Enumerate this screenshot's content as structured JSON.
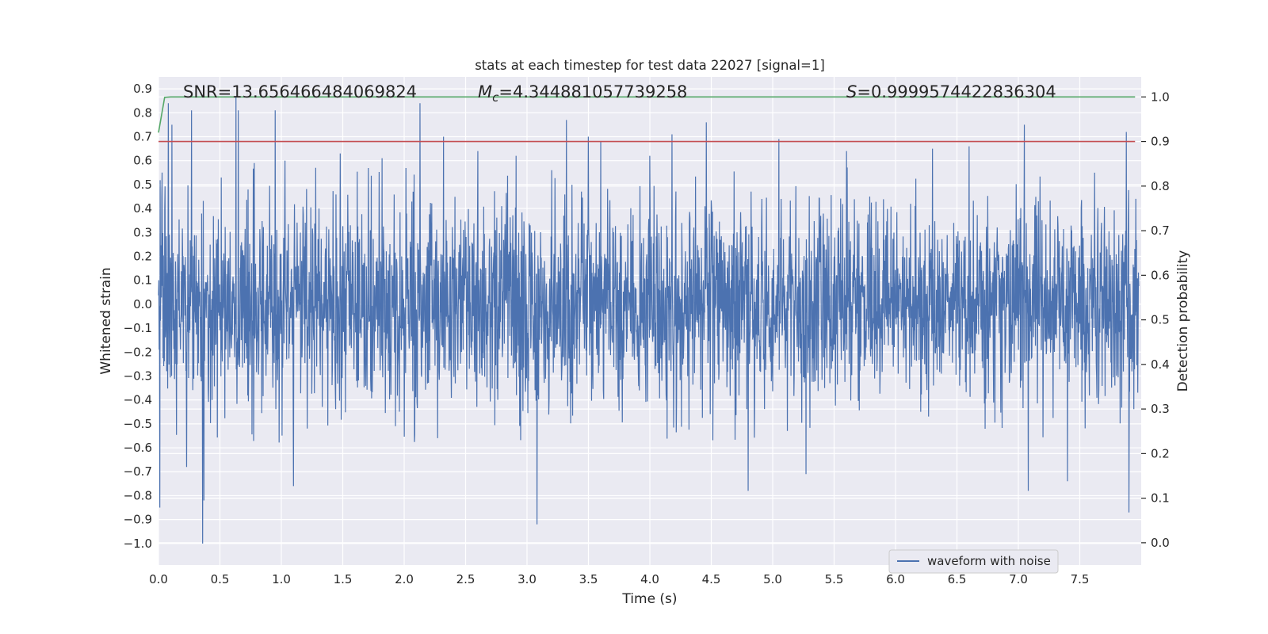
{
  "chart_data": {
    "type": "line",
    "title": "stats at each timestep for test data 22027 [signal=1]",
    "xlabel": "Time (s)",
    "ylabel": "Whitened strain",
    "ylabel_right": "Detection probability",
    "xlim": [
      0.0,
      8.0
    ],
    "ylim": [
      -1.09,
      0.95
    ],
    "ylim_right": [
      -0.05,
      1.045
    ],
    "x_ticks": [
      0.0,
      0.5,
      1.0,
      1.5,
      2.0,
      2.5,
      3.0,
      3.5,
      4.0,
      4.5,
      5.0,
      5.5,
      6.0,
      6.5,
      7.0,
      7.5
    ],
    "x_tick_labels": [
      "0.0",
      "0.5",
      "1.0",
      "1.5",
      "2.0",
      "2.5",
      "3.0",
      "3.5",
      "4.0",
      "4.5",
      "5.0",
      "5.5",
      "6.0",
      "6.5",
      "7.0",
      "7.5"
    ],
    "y_ticks": [
      0.9,
      0.8,
      0.7,
      0.6,
      0.5,
      0.4,
      0.3,
      0.2,
      0.1,
      0.0,
      -0.1,
      -0.2,
      -0.3,
      -0.4,
      -0.5,
      -0.6,
      -0.7,
      -0.8,
      -0.9,
      -1.0
    ],
    "y_tick_labels": [
      "0.9",
      "0.8",
      "0.7",
      "0.6",
      "0.5",
      "0.4",
      "0.3",
      "0.2",
      "0.1",
      "0.0",
      "−0.1",
      "−0.2",
      "−0.3",
      "−0.4",
      "−0.5",
      "−0.6",
      "−0.7",
      "−0.8",
      "−0.9",
      "−1.0"
    ],
    "y_ticks_right": [
      1.0,
      0.9,
      0.8,
      0.7,
      0.6,
      0.5,
      0.4,
      0.3,
      0.2,
      0.1,
      0.0
    ],
    "y_tick_labels_right": [
      "1.0",
      "0.9",
      "0.8",
      "0.7",
      "0.6",
      "0.5",
      "0.4",
      "0.3",
      "0.2",
      "0.1",
      "0.0"
    ],
    "annotations": {
      "snr": "SNR=13.656466484069824",
      "mc_symbol": "M",
      "mc_subscript": "c",
      "mc_value": "=4.344881057739258",
      "s_symbol": "S",
      "s_value": "=0.9999574422836304"
    },
    "legend": {
      "placement": "lower-right",
      "entries": [
        "waveform with noise"
      ]
    },
    "grid": true,
    "series": [
      {
        "name": "waveform with noise",
        "axis": "left",
        "color": "#4c72b0",
        "x_range": [
          0.0,
          7.98
        ],
        "envelope_typical": 0.42,
        "peaks": [
          [
            0.01,
            -0.85
          ],
          [
            0.03,
            0.55
          ],
          [
            0.08,
            0.84
          ],
          [
            0.11,
            0.75
          ],
          [
            0.23,
            -0.68
          ],
          [
            0.27,
            0.81
          ],
          [
            0.36,
            -1.0
          ],
          [
            0.37,
            -0.82
          ],
          [
            0.63,
            0.87
          ],
          [
            0.65,
            0.81
          ],
          [
            0.78,
            0.59
          ],
          [
            0.95,
            0.81
          ],
          [
            1.03,
            0.6
          ],
          [
            1.1,
            -0.76
          ],
          [
            1.28,
            0.57
          ],
          [
            1.48,
            0.63
          ],
          [
            1.82,
            0.61
          ],
          [
            2.13,
            0.84
          ],
          [
            2.32,
            0.7
          ],
          [
            2.6,
            0.64
          ],
          [
            2.91,
            0.62
          ],
          [
            3.08,
            -0.92
          ],
          [
            3.2,
            0.56
          ],
          [
            3.32,
            0.77
          ],
          [
            3.5,
            0.7
          ],
          [
            3.6,
            0.68
          ],
          [
            4.0,
            0.62
          ],
          [
            4.18,
            0.71
          ],
          [
            4.46,
            0.76
          ],
          [
            4.8,
            -0.78
          ],
          [
            5.05,
            0.69
          ],
          [
            5.27,
            -0.71
          ],
          [
            5.6,
            0.64
          ],
          [
            6.3,
            0.65
          ],
          [
            6.6,
            0.66
          ],
          [
            7.05,
            0.75
          ],
          [
            7.08,
            -0.78
          ],
          [
            7.4,
            -0.74
          ],
          [
            7.88,
            0.72
          ],
          [
            7.9,
            -0.87
          ]
        ]
      },
      {
        "name": "",
        "axis": "right",
        "color": "#55a868",
        "x": [
          0.0,
          0.05,
          0.1,
          1.0,
          2.0,
          3.0,
          4.0,
          5.0,
          6.0,
          7.0,
          7.95
        ],
        "y": [
          0.92,
          0.999,
          1.0,
          1.0,
          1.0,
          1.0,
          1.0,
          1.0,
          1.0,
          1.0,
          1.0
        ]
      },
      {
        "name": "",
        "axis": "right",
        "color": "#c44e52",
        "x": [
          0.0,
          7.95
        ],
        "y": [
          0.9,
          0.9
        ]
      }
    ]
  }
}
